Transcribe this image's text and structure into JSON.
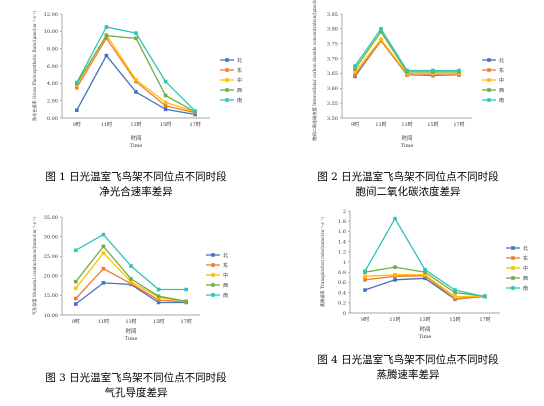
{
  "chart_data": [
    {
      "type": "line",
      "ylabel": "净光合速率 Gross Photosynthetic Rate/(μmol·m⁻²·s⁻¹)",
      "xlabel": "时间",
      "xlabel_en": "Time",
      "categories": [
        "9时",
        "11时",
        "13时",
        "15时",
        "17时"
      ],
      "ylim": [
        0,
        12
      ],
      "yticks": [
        "0.00",
        "2.00",
        "4.00",
        "6.00",
        "8.00",
        "10.00",
        "12.00"
      ],
      "legend_position": "right",
      "series": [
        {
          "name": "北",
          "color": "#4472c4",
          "values": [
            0.9,
            7.2,
            3.0,
            1.0,
            0.4
          ]
        },
        {
          "name": "东",
          "color": "#ed7d31",
          "values": [
            3.5,
            9.2,
            4.2,
            1.4,
            0.6
          ]
        },
        {
          "name": "中",
          "color": "#ffc000",
          "values": [
            3.8,
            9.6,
            4.4,
            1.8,
            0.7
          ]
        },
        {
          "name": "西",
          "color": "#70ad47",
          "values": [
            4.0,
            9.5,
            9.2,
            2.6,
            0.7
          ]
        },
        {
          "name": "南",
          "color": "#2ec5b6",
          "values": [
            4.1,
            10.5,
            9.8,
            4.2,
            0.8
          ]
        }
      ],
      "caption_line1": "图 1  日光温室飞鸟架不同位点不同时段",
      "caption_line2": "净光合速率差异"
    },
    {
      "type": "line",
      "ylabel": "胞间二氧化碳浓度 Intercellular carbon dioxide concentration/(μmol/mol)",
      "xlabel": "时间",
      "xlabel_en": "Time",
      "categories": [
        "9时",
        "11时",
        "13时",
        "15时",
        "17时"
      ],
      "ylim": [
        3.5,
        3.85
      ],
      "yticks": [
        "3.50",
        "3.55",
        "3.60",
        "3.65",
        "3.70",
        "3.75",
        "3.80",
        "3.85"
      ],
      "legend_position": "right",
      "series": [
        {
          "name": "北",
          "color": "#4472c4",
          "values": [
            3.64,
            3.76,
            3.645,
            3.643,
            3.645
          ]
        },
        {
          "name": "东",
          "color": "#ed7d31",
          "values": [
            3.645,
            3.76,
            3.645,
            3.645,
            3.645
          ]
        },
        {
          "name": "中",
          "color": "#ffc000",
          "values": [
            3.655,
            3.765,
            3.65,
            3.65,
            3.65
          ]
        },
        {
          "name": "西",
          "color": "#70ad47",
          "values": [
            3.665,
            3.79,
            3.655,
            3.655,
            3.655
          ]
        },
        {
          "name": "南",
          "color": "#2ec5b6",
          "values": [
            3.675,
            3.8,
            3.66,
            3.66,
            3.66
          ]
        }
      ],
      "caption_line1": "图 2  日光温室飞鸟架不同位点不同时段",
      "caption_line2": "胞间二氧化碳浓度差异"
    },
    {
      "type": "line",
      "ylabel": "气孔导度 Stomatal conductance/(mmol·m⁻²·s⁻¹)",
      "xlabel": "时间",
      "xlabel_en": "Time",
      "categories": [
        "9时",
        "11时",
        "13时",
        "15时",
        "17时"
      ],
      "ylim": [
        10,
        35
      ],
      "yticks": [
        "10.00",
        "15.00",
        "20.00",
        "25.00",
        "30.00",
        "35.00"
      ],
      "legend_position": "right",
      "series": [
        {
          "name": "北",
          "color": "#4472c4",
          "values": [
            12.8,
            18.2,
            17.8,
            13.2,
            13.2
          ]
        },
        {
          "name": "东",
          "color": "#ed7d31",
          "values": [
            14.2,
            21.8,
            18.0,
            13.8,
            13.4
          ]
        },
        {
          "name": "中",
          "color": "#ffc000",
          "values": [
            16.8,
            25.8,
            18.5,
            14.5,
            13.4
          ]
        },
        {
          "name": "西",
          "color": "#70ad47",
          "values": [
            18.5,
            27.5,
            19.2,
            14.8,
            13.5
          ]
        },
        {
          "name": "南",
          "color": "#2ec5b6",
          "values": [
            26.5,
            30.5,
            22.5,
            16.5,
            16.5
          ]
        }
      ],
      "caption_line1": "图 3  日光温室飞鸟架不同位点不同时段",
      "caption_line2": "气孔导度差异"
    },
    {
      "type": "line",
      "ylabel": "蒸腾速率 Transpiration rate/(mmol·m⁻²·s⁻¹)",
      "xlabel": "时间",
      "xlabel_en": "Time",
      "categories": [
        "9时",
        "11时",
        "13时",
        "15时",
        "17时"
      ],
      "ylim": [
        0,
        2
      ],
      "yticks": [
        "0",
        "0.2",
        "0.4",
        "0.6",
        "0.8",
        "1",
        "1.2",
        "1.4",
        "1.6",
        "1.8",
        "2"
      ],
      "legend_position": "right",
      "series": [
        {
          "name": "北",
          "color": "#4472c4",
          "values": [
            0.45,
            0.65,
            0.68,
            0.27,
            0.33
          ]
        },
        {
          "name": "东",
          "color": "#ed7d31",
          "values": [
            0.65,
            0.72,
            0.73,
            0.28,
            0.32
          ]
        },
        {
          "name": "中",
          "color": "#ffc000",
          "values": [
            0.72,
            0.75,
            0.75,
            0.32,
            0.33
          ]
        },
        {
          "name": "西",
          "color": "#70ad47",
          "values": [
            0.8,
            0.9,
            0.8,
            0.4,
            0.33
          ]
        },
        {
          "name": "南",
          "color": "#2ec5b6",
          "values": [
            0.82,
            1.85,
            0.85,
            0.45,
            0.32
          ]
        }
      ],
      "caption_line1": "图 4  日光温室飞鸟架不同位点不同时段",
      "caption_line2": "蒸腾速率差异"
    }
  ]
}
